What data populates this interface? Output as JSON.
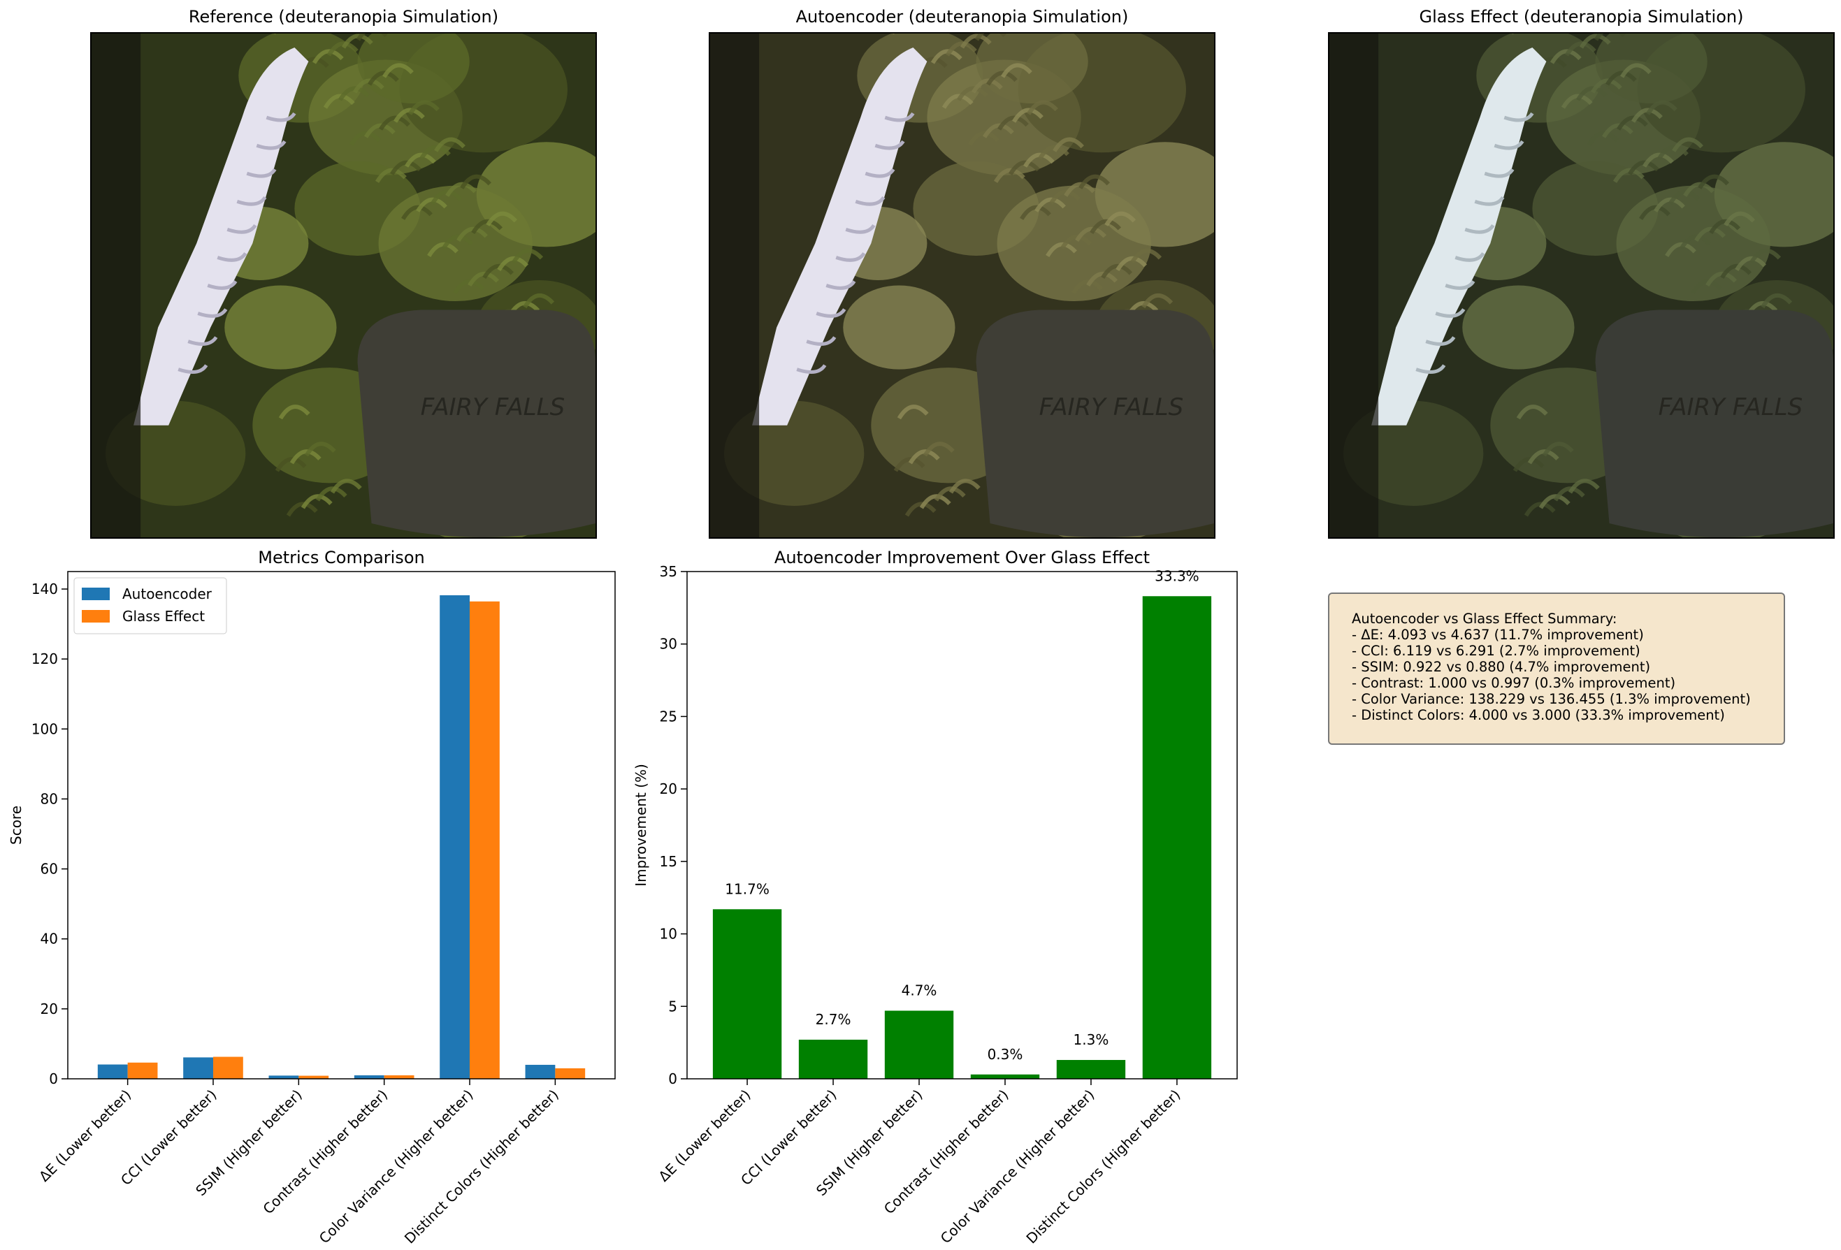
{
  "panels": [
    {
      "title": "Reference (deuteranopia Simulation)",
      "variant": "reference"
    },
    {
      "title": "Autoencoder (deuteranopia Simulation)",
      "variant": "autoencoder"
    },
    {
      "title": "Glass Effect (deuteranopia Simulation)",
      "variant": "glass"
    }
  ],
  "stone_text": "FAIRY FALLS",
  "chart_data": [
    {
      "type": "bar",
      "title": "Metrics Comparison",
      "xlabel": "",
      "ylabel": "Score",
      "ylim": [
        0,
        145
      ],
      "yticks": [
        0,
        20,
        40,
        60,
        80,
        100,
        120,
        140
      ],
      "legend_placement": "top-left",
      "categories": [
        "ΔE (Lower better)",
        "CCI (Lower better)",
        "SSIM (Higher better)",
        "Contrast (Higher better)",
        "Color Variance (Higher better)",
        "Distinct Colors (Higher better)"
      ],
      "series": [
        {
          "name": "Autoencoder",
          "color": "#1f77b4",
          "values": [
            4.093,
            6.119,
            0.922,
            1.0,
            138.229,
            4.0
          ]
        },
        {
          "name": "Glass Effect",
          "color": "#ff7f0e",
          "values": [
            4.637,
            6.291,
            0.88,
            0.997,
            136.455,
            3.0
          ]
        }
      ]
    },
    {
      "type": "bar",
      "title": "Autoencoder Improvement Over Glass Effect",
      "xlabel": "",
      "ylabel": "Improvement (%)",
      "ylim": [
        0,
        35
      ],
      "yticks": [
        0,
        5,
        10,
        15,
        20,
        25,
        30,
        35
      ],
      "color": "#008000",
      "categories": [
        "ΔE (Lower better)",
        "CCI (Lower better)",
        "SSIM (Higher better)",
        "Contrast (Higher better)",
        "Color Variance (Higher better)",
        "Distinct Colors (Higher better)"
      ],
      "values": [
        11.7,
        2.7,
        4.7,
        0.3,
        1.3,
        33.3
      ],
      "labels": [
        "11.7%",
        "2.7%",
        "4.7%",
        "0.3%",
        "1.3%",
        "33.3%"
      ]
    }
  ],
  "summary": {
    "title": "Autoencoder vs Glass Effect Summary:",
    "lines": [
      "- ΔE: 4.093 vs 4.637 (11.7% improvement)",
      "- CCI: 6.119 vs 6.291 (2.7% improvement)",
      "- SSIM: 0.922 vs 0.880 (4.7% improvement)",
      "- Contrast: 1.000 vs 0.997 (0.3% improvement)",
      "- Color Variance: 138.229 vs 136.455 (1.3% improvement)",
      "- Distinct Colors: 4.000 vs 3.000 (33.3% improvement)"
    ]
  }
}
